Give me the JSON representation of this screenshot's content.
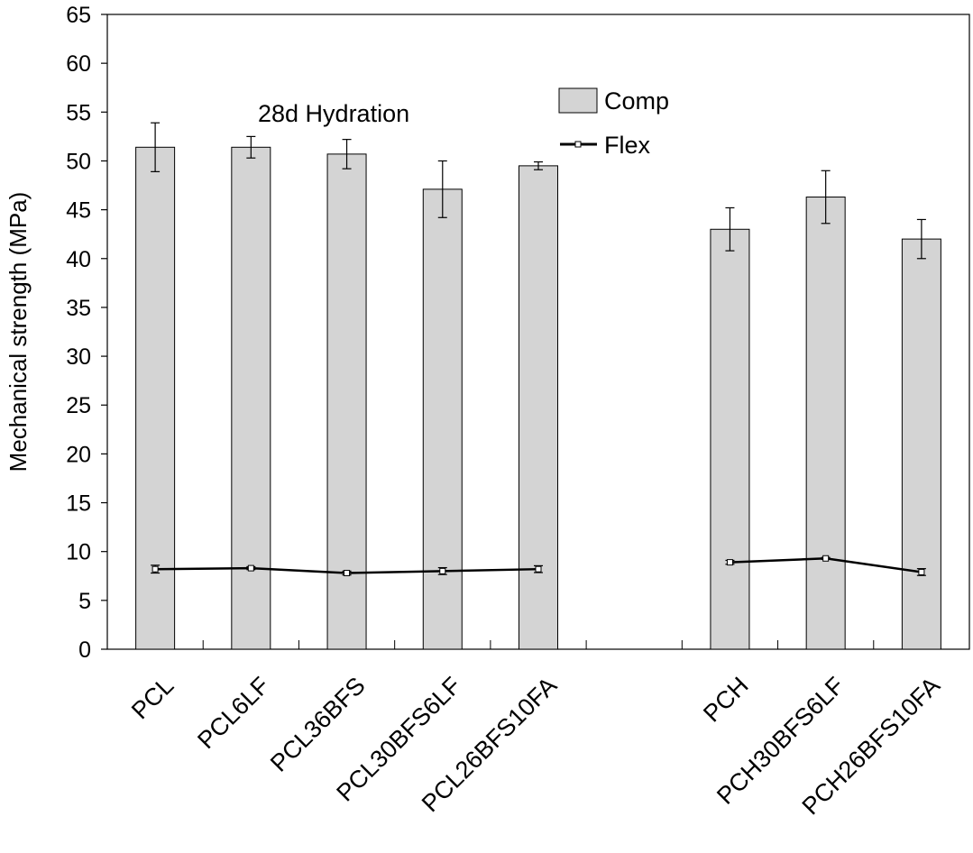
{
  "chart_data": {
    "type": "bar",
    "categories": [
      "PCL",
      "PCL6LF",
      "PCL36BFS",
      "PCL30BFS6LF",
      "PCL26BFS10FA",
      "",
      "PCH",
      "PCH30BFS6LF",
      "PCH26BFS10FA"
    ],
    "series": [
      {
        "name": "Comp",
        "type": "bar",
        "values": [
          51.4,
          51.4,
          50.7,
          47.1,
          49.5,
          null,
          43.0,
          46.3,
          42.0
        ],
        "errors": [
          2.5,
          1.1,
          1.5,
          2.9,
          0.4,
          null,
          2.2,
          2.7,
          2.0
        ],
        "color": "#d4d4d4"
      },
      {
        "name": "Flex",
        "type": "line",
        "values": [
          8.2,
          8.3,
          7.8,
          8.0,
          8.2,
          null,
          8.9,
          9.3,
          7.9
        ],
        "errors": [
          0.4,
          0.15,
          0.2,
          0.35,
          0.35,
          null,
          0.2,
          0.1,
          0.35
        ],
        "color": "#000000"
      }
    ],
    "annotation": "28d Hydration",
    "ylabel": "Mechanical strength (MPa)",
    "xlabel": "",
    "ylim": [
      0,
      65
    ],
    "yticks": [
      0,
      5,
      10,
      15,
      20,
      25,
      30,
      35,
      40,
      45,
      50,
      55,
      60,
      65
    ],
    "grid": false,
    "legend_position": "top-center"
  }
}
